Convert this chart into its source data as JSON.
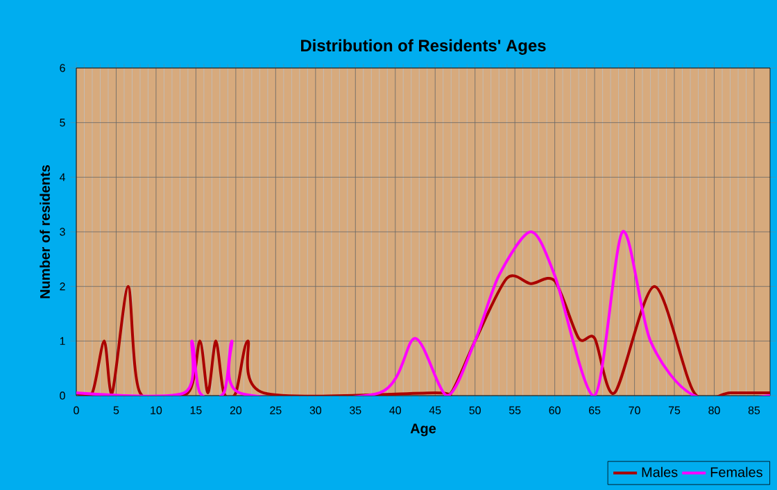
{
  "chart_data": {
    "type": "line",
    "title": "Distribution of Residents' Ages",
    "xlabel": "Age",
    "ylabel": "Number of residents",
    "xlim": [
      0,
      87
    ],
    "xticks": [
      0,
      5,
      10,
      15,
      20,
      25,
      30,
      35,
      40,
      45,
      50,
      55,
      60,
      65,
      70,
      75,
      80,
      85
    ],
    "ylim": [
      0,
      6
    ],
    "yticks": [
      0,
      1,
      2,
      3,
      4,
      5,
      6
    ],
    "grid": true,
    "legend": "bottom right",
    "marker": "none",
    "line_style": "solid",
    "series": [
      {
        "name": "Males",
        "color": "#aa0000",
        "x": [
          0,
          2,
          3.5,
          4.5,
          6.5,
          8,
          14,
          15.5,
          16.5,
          17.5,
          18.5,
          20,
          21.5,
          23.5,
          45,
          47,
          50,
          54,
          57,
          60,
          63,
          65,
          67.5,
          72.5,
          77.5,
          82,
          87
        ],
        "values": [
          0.05,
          0.05,
          1,
          0.05,
          2,
          0.05,
          0.05,
          1,
          0.05,
          1,
          0.05,
          0.05,
          1,
          0.05,
          0.05,
          0.05,
          1,
          2.15,
          2.05,
          2.1,
          1.05,
          1.05,
          0.05,
          2,
          0.05,
          0.05,
          0.05
        ]
      },
      {
        "name": "Females",
        "color": "#ff00ff",
        "x": [
          0,
          13.5,
          14.5,
          15.5,
          18.5,
          19.5,
          20.5,
          38,
          42.5,
          46.5,
          50,
          53,
          57,
          60,
          65,
          68.5,
          72,
          77.5,
          87
        ],
        "values": [
          0.05,
          0.05,
          1,
          0.05,
          0.05,
          1,
          0.05,
          0.05,
          1.05,
          0,
          1,
          2.2,
          3,
          2.2,
          0,
          3,
          1,
          0,
          0
        ]
      }
    ]
  }
}
